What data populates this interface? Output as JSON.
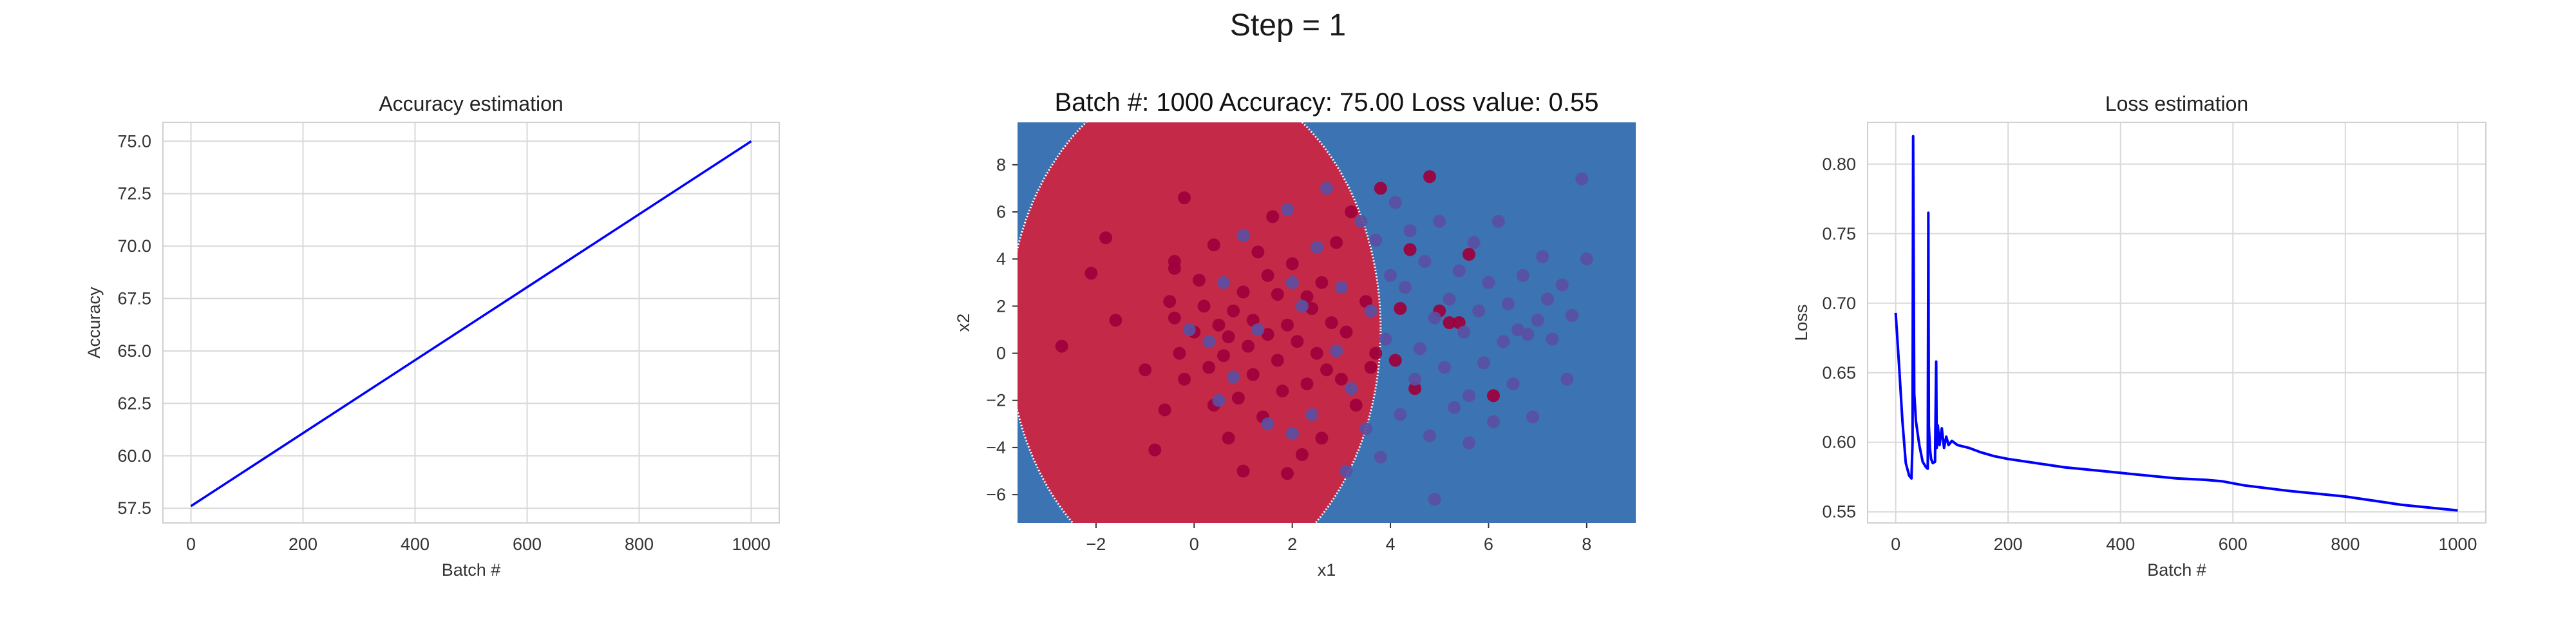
{
  "suptitle": "Step = 1",
  "chart_data": [
    {
      "type": "line",
      "title": "Accuracy estimation",
      "xlabel": "Batch #",
      "ylabel": "Accuracy",
      "xlim": [
        -50,
        1050
      ],
      "ylim": [
        56.8,
        75.9
      ],
      "xticks": [
        0,
        200,
        400,
        600,
        800,
        1000
      ],
      "yticks": [
        57.5,
        60.0,
        62.5,
        65.0,
        67.5,
        70.0,
        72.5,
        75.0
      ],
      "grid": true,
      "series": [
        {
          "color": "#0000ff",
          "x": [
            0,
            1000
          ],
          "y": [
            57.6,
            75.0
          ]
        }
      ]
    },
    {
      "type": "scatter",
      "title": "Batch #: 1000    Accuracy: 75.00    Loss value: 0.55",
      "xlabel": "x1",
      "ylabel": "x2",
      "xlim": [
        -3.6,
        9.0
      ],
      "ylim": [
        -7.2,
        9.8
      ],
      "xticks": [
        -2,
        0,
        2,
        4,
        6,
        8
      ],
      "yticks": [
        -6,
        -4,
        -2,
        0,
        2,
        4,
        6,
        8
      ],
      "grid": false,
      "regions": {
        "class0_color": "#c42a48",
        "class1_color": "#3b73b3",
        "boundary_center": [
          0.0,
          1.0
        ],
        "boundary_radius": [
          3.8,
          10.8
        ]
      },
      "series": [
        {
          "color": "#a0003c",
          "points": [
            [
              -2.7,
              0.3
            ],
            [
              -2.1,
              3.4
            ],
            [
              -1.8,
              4.9
            ],
            [
              -1.6,
              1.4
            ],
            [
              -1.0,
              -0.7
            ],
            [
              -0.8,
              -4.1
            ],
            [
              -0.6,
              -2.4
            ],
            [
              -0.5,
              2.2
            ],
            [
              -0.4,
              1.5
            ],
            [
              -0.4,
              3.6
            ],
            [
              -0.4,
              3.9
            ],
            [
              -0.3,
              0.0
            ],
            [
              -0.2,
              6.6
            ],
            [
              -0.2,
              -1.1
            ],
            [
              0.0,
              0.9
            ],
            [
              0.1,
              3.1
            ],
            [
              0.2,
              2.0
            ],
            [
              0.3,
              -0.6
            ],
            [
              0.4,
              4.6
            ],
            [
              0.4,
              -2.2
            ],
            [
              0.5,
              1.2
            ],
            [
              0.6,
              -0.1
            ],
            [
              0.7,
              0.7
            ],
            [
              0.7,
              -3.6
            ],
            [
              0.8,
              1.8
            ],
            [
              0.9,
              -1.9
            ],
            [
              1.0,
              2.6
            ],
            [
              1.0,
              -5.0
            ],
            [
              1.1,
              0.3
            ],
            [
              1.2,
              1.4
            ],
            [
              1.2,
              -0.9
            ],
            [
              1.3,
              4.3
            ],
            [
              1.4,
              -2.7
            ],
            [
              1.5,
              3.3
            ],
            [
              1.5,
              0.8
            ],
            [
              1.6,
              5.8
            ],
            [
              1.7,
              -0.3
            ],
            [
              1.7,
              2.5
            ],
            [
              1.8,
              -1.6
            ],
            [
              1.9,
              1.2
            ],
            [
              1.9,
              -5.1
            ],
            [
              2.0,
              3.8
            ],
            [
              2.1,
              0.5
            ],
            [
              2.2,
              -4.3
            ],
            [
              2.3,
              2.4
            ],
            [
              2.3,
              -1.3
            ],
            [
              2.4,
              1.9
            ],
            [
              2.5,
              0.0
            ],
            [
              2.6,
              -3.6
            ],
            [
              2.6,
              3.0
            ],
            [
              2.7,
              -0.7
            ],
            [
              2.8,
              1.3
            ],
            [
              2.9,
              4.7
            ],
            [
              3.0,
              -1.1
            ],
            [
              3.1,
              0.9
            ],
            [
              3.2,
              6.0
            ],
            [
              3.3,
              -2.2
            ],
            [
              3.5,
              2.2
            ],
            [
              3.6,
              -0.6
            ],
            [
              3.7,
              0.0
            ],
            [
              3.8,
              7.0
            ],
            [
              4.1,
              -0.3
            ],
            [
              4.2,
              1.9
            ],
            [
              4.4,
              4.4
            ],
            [
              4.5,
              -1.5
            ],
            [
              4.8,
              7.5
            ],
            [
              5.0,
              1.8
            ],
            [
              5.2,
              1.3
            ],
            [
              5.4,
              1.3
            ],
            [
              5.6,
              4.2
            ],
            [
              6.1,
              -1.8
            ]
          ]
        },
        {
          "color": "#5b4fa3",
          "points": [
            [
              -0.1,
              1.0
            ],
            [
              0.3,
              0.5
            ],
            [
              0.5,
              -2.0
            ],
            [
              0.6,
              3.0
            ],
            [
              0.8,
              -1.0
            ],
            [
              1.0,
              5.0
            ],
            [
              1.3,
              1.0
            ],
            [
              1.5,
              -3.0
            ],
            [
              1.9,
              6.1
            ],
            [
              2.0,
              3.0
            ],
            [
              2.2,
              2.0
            ],
            [
              2.4,
              -2.6
            ],
            [
              2.5,
              4.5
            ],
            [
              2.7,
              7.0
            ],
            [
              2.9,
              0.1
            ],
            [
              3.0,
              2.8
            ],
            [
              3.2,
              -1.5
            ],
            [
              3.4,
              5.6
            ],
            [
              3.5,
              -3.2
            ],
            [
              3.6,
              1.8
            ],
            [
              3.7,
              4.8
            ],
            [
              3.8,
              -4.4
            ],
            [
              3.9,
              0.6
            ],
            [
              4.0,
              3.3
            ],
            [
              4.1,
              6.4
            ],
            [
              4.2,
              -2.6
            ],
            [
              4.3,
              2.8
            ],
            [
              4.4,
              5.2
            ],
            [
              4.5,
              -1.1
            ],
            [
              4.6,
              0.2
            ],
            [
              4.7,
              3.9
            ],
            [
              4.8,
              -3.5
            ],
            [
              4.9,
              1.5
            ],
            [
              5.0,
              5.6
            ],
            [
              5.1,
              -0.6
            ],
            [
              5.2,
              2.3
            ],
            [
              5.3,
              -2.3
            ],
            [
              5.4,
              3.5
            ],
            [
              5.5,
              0.9
            ],
            [
              5.6,
              -1.8
            ],
            [
              5.7,
              4.7
            ],
            [
              5.8,
              1.8
            ],
            [
              5.9,
              -0.4
            ],
            [
              6.0,
              3.0
            ],
            [
              6.1,
              -2.9
            ],
            [
              6.2,
              5.6
            ],
            [
              6.3,
              0.5
            ],
            [
              6.4,
              2.1
            ],
            [
              6.5,
              -1.3
            ],
            [
              6.7,
              3.3
            ],
            [
              6.8,
              0.8
            ],
            [
              6.9,
              -2.7
            ],
            [
              7.0,
              1.4
            ],
            [
              7.1,
              4.1
            ],
            [
              7.3,
              0.6
            ],
            [
              7.5,
              2.9
            ],
            [
              7.6,
              -1.1
            ],
            [
              7.7,
              1.6
            ],
            [
              7.9,
              7.4
            ],
            [
              8.0,
              4.0
            ],
            [
              4.9,
              -6.2
            ],
            [
              3.1,
              -5.0
            ],
            [
              2.0,
              -3.4
            ],
            [
              5.6,
              -3.8
            ],
            [
              6.6,
              1.0
            ],
            [
              7.2,
              2.3
            ]
          ]
        }
      ]
    },
    {
      "type": "line",
      "title": "Loss estimation",
      "xlabel": "Batch #",
      "ylabel": "Loss",
      "xlim": [
        -50,
        1050
      ],
      "ylim": [
        0.542,
        0.83
      ],
      "xticks": [
        0,
        200,
        400,
        600,
        800,
        1000
      ],
      "yticks": [
        0.55,
        0.6,
        0.65,
        0.7,
        0.75,
        0.8
      ],
      "grid": true,
      "series": [
        {
          "color": "#0000ff",
          "x": [
            0,
            6,
            12,
            18,
            24,
            28,
            30,
            31,
            33,
            36,
            42,
            48,
            54,
            57,
            58,
            59,
            61,
            63,
            66,
            70,
            72,
            73,
            75,
            78,
            82,
            86,
            90,
            94,
            100,
            110,
            130,
            150,
            175,
            200,
            250,
            300,
            350,
            400,
            450,
            500,
            550,
            580,
            620,
            660,
            700,
            750,
            800,
            850,
            900,
            950,
            1000
          ],
          "y": [
            0.693,
            0.655,
            0.615,
            0.585,
            0.576,
            0.574,
            0.6,
            0.82,
            0.635,
            0.615,
            0.598,
            0.586,
            0.582,
            0.581,
            0.765,
            0.612,
            0.595,
            0.588,
            0.585,
            0.586,
            0.658,
            0.596,
            0.612,
            0.598,
            0.61,
            0.596,
            0.604,
            0.598,
            0.601,
            0.598,
            0.596,
            0.593,
            0.59,
            0.588,
            0.585,
            0.582,
            0.58,
            0.578,
            0.576,
            0.574,
            0.573,
            0.572,
            0.569,
            0.567,
            0.565,
            0.563,
            0.561,
            0.558,
            0.555,
            0.553,
            0.551
          ]
        }
      ]
    }
  ]
}
